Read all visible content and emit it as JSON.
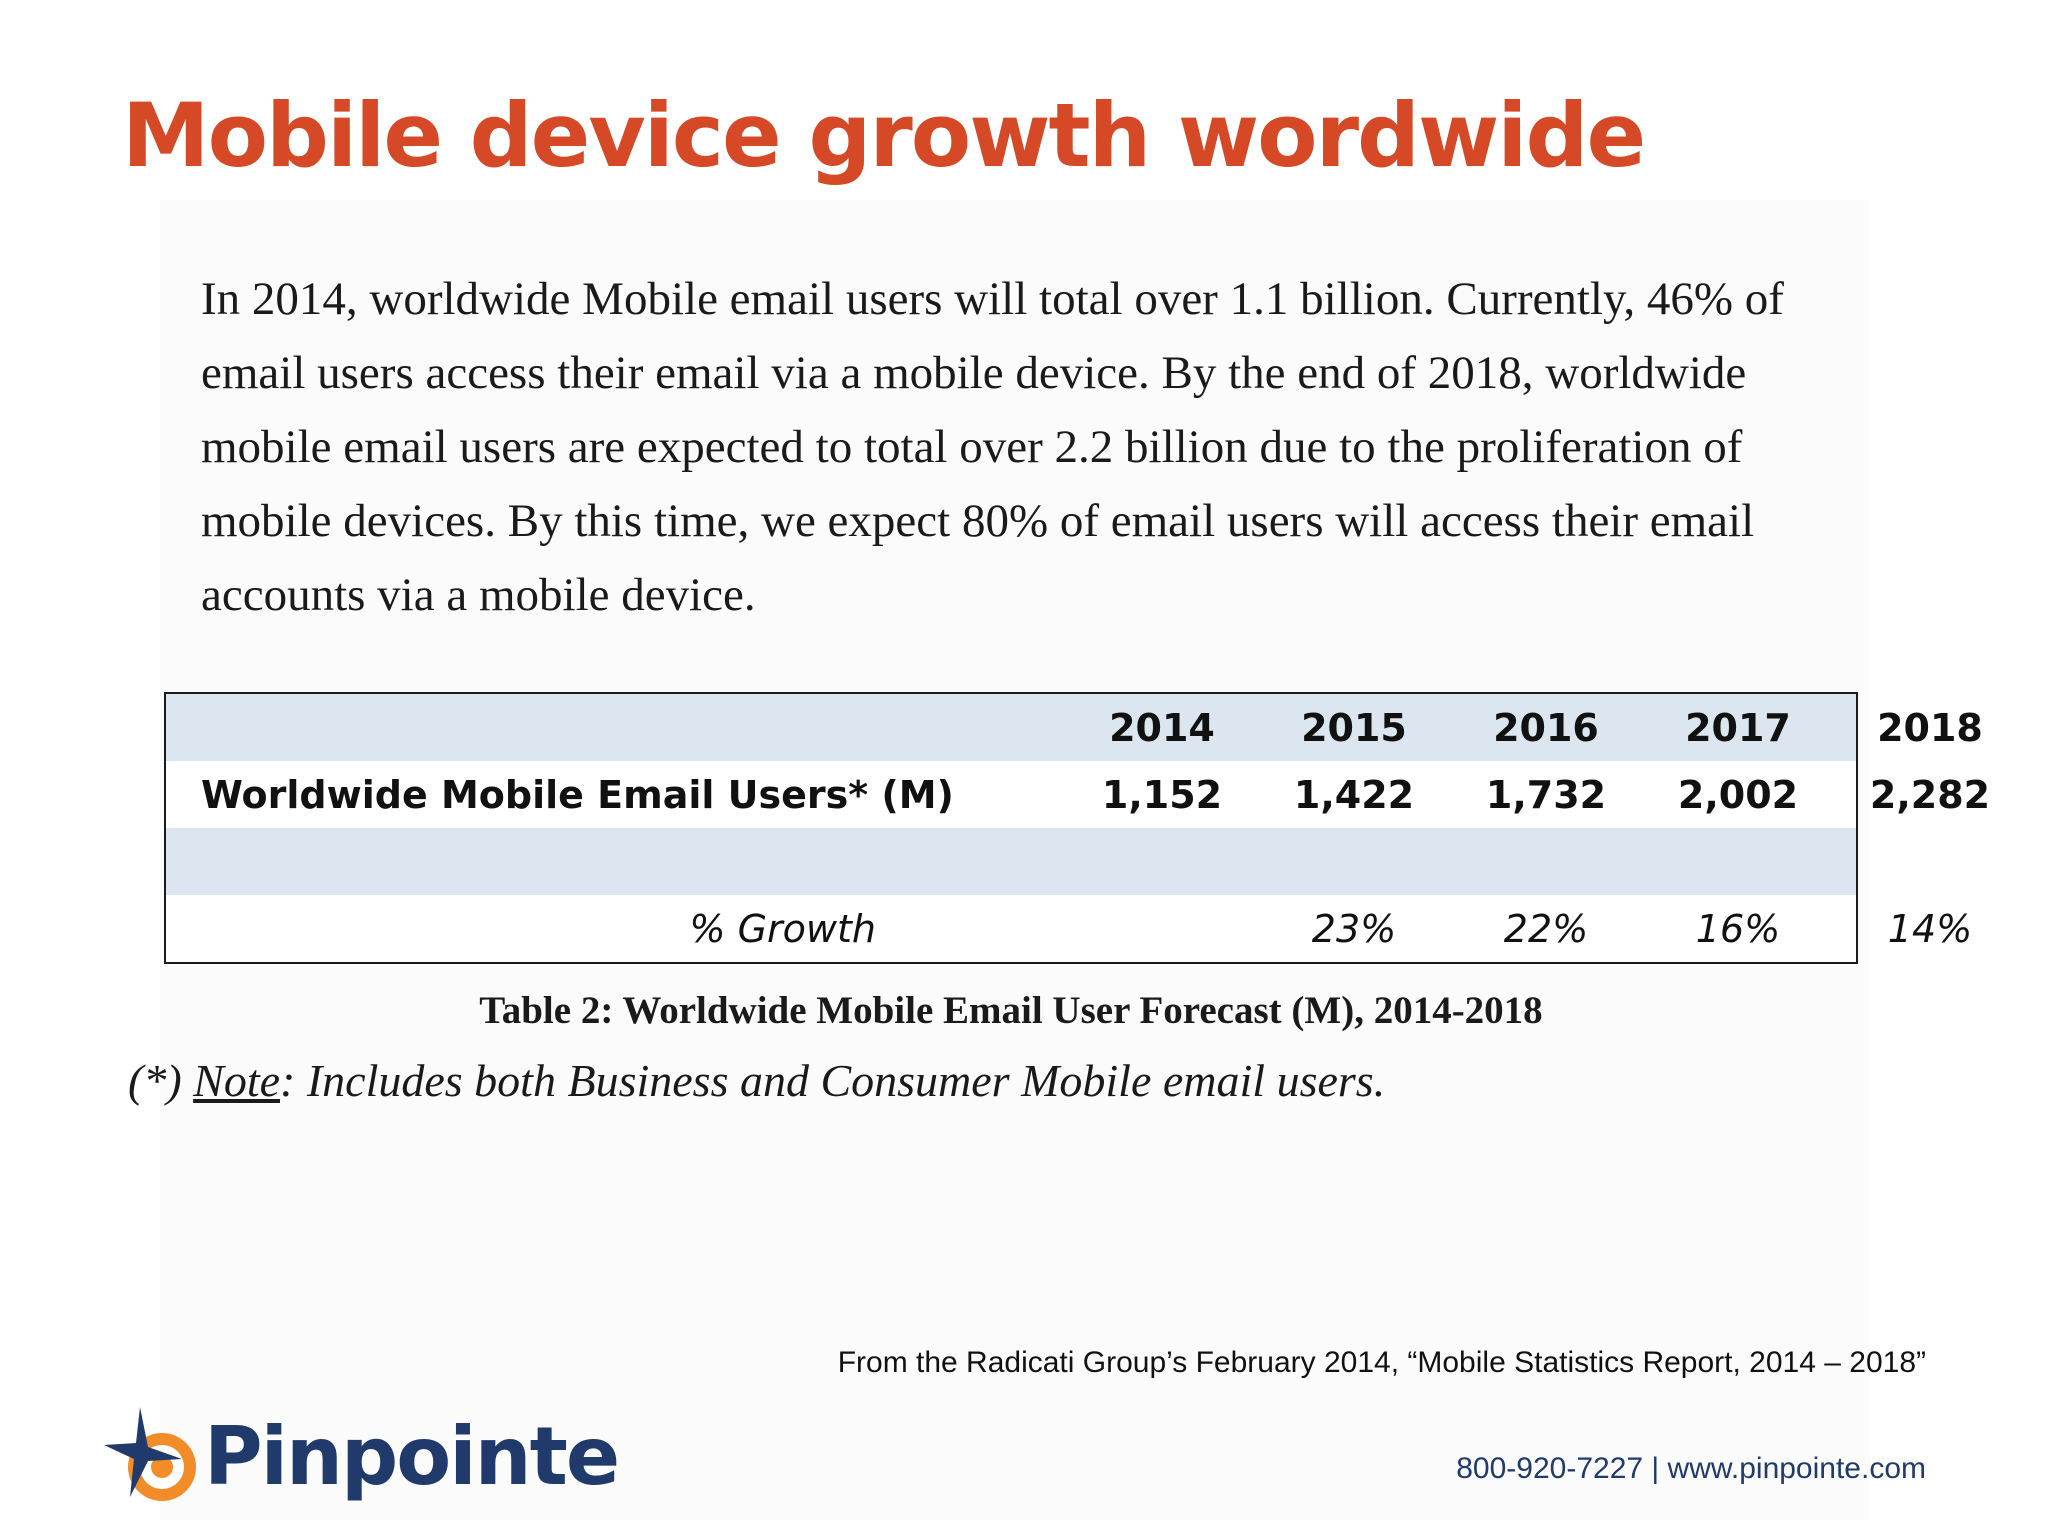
{
  "title": "Mobile device growth wordwide",
  "intro": "In 2014, worldwide Mobile email users will total over 1.1 billion. Currently, 46% of email users access their email via a mobile device. By the end of 2018, worldwide mobile email users are expected to total over 2.2 billion due to the proliferation of mobile devices. By this time, we expect 80% of email users will access their email accounts via a mobile device.",
  "table": {
    "years": [
      "2014",
      "2015",
      "2016",
      "2017",
      "2018"
    ],
    "users_label": "Worldwide Mobile Email Users* (M)",
    "users": [
      "1,152",
      "1,422",
      "1,732",
      "2,002",
      "2,282"
    ],
    "growth_label": "% Growth",
    "growth": [
      "",
      "23%",
      "22%",
      "16%",
      "14%"
    ],
    "shade_color": "#dce6f1"
  },
  "caption": "Table 2: Worldwide Mobile Email User Forecast (M), 2014-2018",
  "note": {
    "prefix": "(*) ",
    "keyword": "Note",
    "text": ": Includes both Business and Consumer Mobile email users."
  },
  "source": "From the Radicati Group’s February 2014, “Mobile Statistics Report, 2014 – 2018”",
  "contact": "800-920-7227 | www.pinpointe.com",
  "logo": {
    "name": "Pinpointe",
    "icon": "target-star-icon",
    "accent_color": "#f28c28",
    "brand_color": "#1f3a6b"
  },
  "colors": {
    "title": "#d64926"
  }
}
